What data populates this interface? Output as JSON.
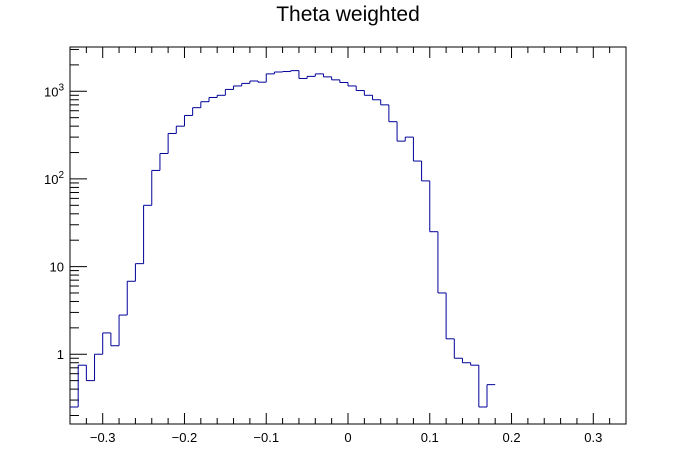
{
  "chart_data": {
    "type": "histogram",
    "title": "Theta weighted",
    "xlabel": "",
    "ylabel": "",
    "xlim": [
      -0.34,
      0.34
    ],
    "ylim": [
      0.16,
      3200
    ],
    "yscale": "log",
    "grid": false,
    "line_color": "#000099",
    "bins": {
      "low": -0.34,
      "width": 0.01,
      "values": [
        0.25,
        0.75,
        0.5,
        1.0,
        1.75,
        1.25,
        2.8,
        6.8,
        10.8,
        50,
        125,
        195,
        330,
        400,
        530,
        650,
        760,
        850,
        900,
        1050,
        1150,
        1230,
        1310,
        1270,
        1580,
        1660,
        1680,
        1720,
        1400,
        1480,
        1580,
        1460,
        1350,
        1260,
        1150,
        1020,
        900,
        800,
        700,
        450,
        270,
        300,
        160,
        95,
        25,
        5,
        1.5,
        0.9,
        0.8,
        0.75,
        0.25,
        0.45
      ]
    },
    "x_ticks": [
      {
        "v": -0.3,
        "label": "−0.3"
      },
      {
        "v": -0.2,
        "label": "−0.2"
      },
      {
        "v": -0.1,
        "label": "−0.1"
      },
      {
        "v": 0,
        "label": "0"
      },
      {
        "v": 0.1,
        "label": "0.1"
      },
      {
        "v": 0.2,
        "label": "0.2"
      },
      {
        "v": 0.3,
        "label": "0.3"
      }
    ],
    "y_ticks": [
      {
        "v": 1,
        "label": "1",
        "sup": ""
      },
      {
        "v": 10,
        "label": "10",
        "sup": ""
      },
      {
        "v": 100,
        "label": "10",
        "sup": "2"
      },
      {
        "v": 1000,
        "label": "10",
        "sup": "3"
      }
    ]
  }
}
